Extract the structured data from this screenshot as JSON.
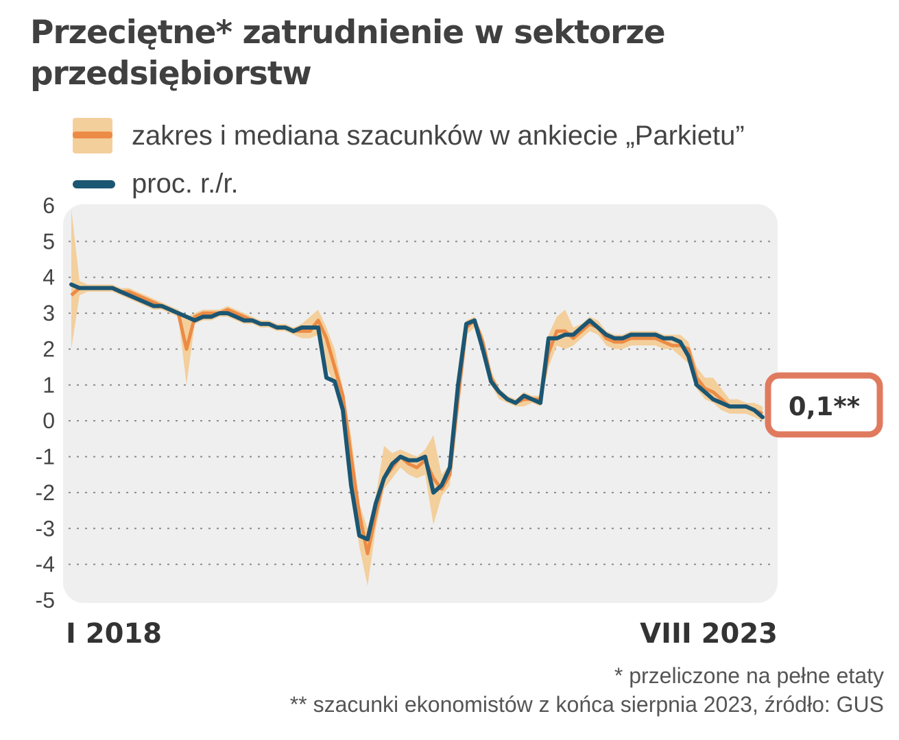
{
  "chart_data": {
    "type": "line",
    "title": "Przeciętne* zatrudnienie w sektorze przedsiębiorstw",
    "ylim": [
      -5,
      6
    ],
    "yticks": [
      "6",
      "5",
      "4",
      "3",
      "2",
      "1",
      "0",
      "-1",
      "-2",
      "-3",
      "-4",
      "-5"
    ],
    "x_start_label": "I 2018",
    "x_end_label": "VIII 2023",
    "legend": {
      "range": "zakres i mediana szacunków w ankiecie „Parkietu”",
      "line": "proc. r./r."
    },
    "callout": "0,1**",
    "series": [
      {
        "name": "proc. r./r.",
        "color": "#1b5673",
        "values": [
          3.8,
          3.7,
          3.7,
          3.7,
          3.7,
          3.7,
          3.6,
          3.5,
          3.4,
          3.3,
          3.2,
          3.2,
          3.1,
          3.0,
          2.9,
          2.8,
          2.9,
          2.9,
          3.0,
          3.0,
          2.9,
          2.8,
          2.8,
          2.7,
          2.7,
          2.6,
          2.6,
          2.5,
          2.6,
          2.6,
          2.6,
          1.2,
          1.1,
          0.3,
          -1.8,
          -3.2,
          -3.3,
          -2.3,
          -1.6,
          -1.2,
          -1.0,
          -1.1,
          -1.1,
          -1.0,
          -2.0,
          -1.8,
          -1.3,
          1.0,
          2.7,
          2.8,
          2.0,
          1.1,
          0.8,
          0.6,
          0.5,
          0.7,
          0.6,
          0.5,
          2.3,
          2.3,
          2.4,
          2.4,
          2.6,
          2.8,
          2.6,
          2.4,
          2.3,
          2.3,
          2.4,
          2.4,
          2.4,
          2.4,
          2.3,
          2.3,
          2.2,
          1.8,
          1.0,
          0.8,
          0.6,
          0.5,
          0.4,
          0.4,
          0.4,
          0.3,
          0.1
        ]
      },
      {
        "name": "mediana szacunków",
        "color": "#ec8b45",
        "values": [
          3.5,
          3.7,
          3.7,
          3.7,
          3.7,
          3.7,
          3.6,
          3.6,
          3.5,
          3.4,
          3.3,
          3.2,
          3.1,
          3.0,
          2.0,
          2.9,
          3.0,
          3.0,
          3.0,
          3.1,
          3.0,
          2.9,
          2.8,
          2.7,
          2.7,
          2.6,
          2.6,
          2.5,
          2.5,
          2.5,
          2.8,
          2.3,
          1.5,
          0.7,
          -1.0,
          -2.6,
          -3.7,
          -2.6,
          -1.6,
          -1.3,
          -1.0,
          -1.2,
          -1.3,
          -1.1,
          -1.6,
          -1.9,
          -1.5,
          0.6,
          2.6,
          2.8,
          2.2,
          1.2,
          0.8,
          0.6,
          0.5,
          0.6,
          0.6,
          0.6,
          1.9,
          2.5,
          2.5,
          2.3,
          2.5,
          2.7,
          2.6,
          2.3,
          2.2,
          2.2,
          2.3,
          2.3,
          2.3,
          2.3,
          2.2,
          2.1,
          2.1,
          2.0,
          1.2,
          0.9,
          0.8,
          0.6,
          0.4,
          0.4,
          0.4,
          0.3,
          0.2
        ]
      }
    ],
    "range_band": {
      "name": "zakres szacunków",
      "color": "#f3cf9c",
      "lower": [
        2.0,
        3.5,
        3.6,
        3.6,
        3.6,
        3.6,
        3.5,
        3.4,
        3.3,
        3.2,
        3.1,
        3.1,
        3.0,
        2.9,
        1.0,
        2.7,
        2.8,
        2.8,
        2.9,
        2.9,
        2.8,
        2.7,
        2.7,
        2.6,
        2.6,
        2.5,
        2.5,
        2.4,
        2.3,
        2.3,
        2.4,
        1.5,
        1.0,
        0.2,
        -2.0,
        -3.5,
        -4.6,
        -3.0,
        -1.9,
        -1.6,
        -1.3,
        -1.5,
        -1.6,
        -1.5,
        -2.9,
        -2.1,
        -1.8,
        0.3,
        2.4,
        2.6,
        1.9,
        1.0,
        0.6,
        0.5,
        0.4,
        0.4,
        0.5,
        0.4,
        1.5,
        2.1,
        2.0,
        2.1,
        2.3,
        2.5,
        2.4,
        2.1,
        2.0,
        2.0,
        2.1,
        2.1,
        2.1,
        2.1,
        2.0,
        2.0,
        1.8,
        1.6,
        0.9,
        0.6,
        0.5,
        0.3,
        0.2,
        0.2,
        0.2,
        0.1,
        0.0
      ],
      "upper": [
        5.9,
        3.9,
        3.8,
        3.8,
        3.8,
        3.8,
        3.7,
        3.7,
        3.6,
        3.5,
        3.4,
        3.3,
        3.2,
        3.1,
        2.9,
        3.0,
        3.1,
        3.1,
        3.1,
        3.2,
        3.1,
        3.0,
        2.9,
        2.8,
        2.8,
        2.7,
        2.7,
        2.6,
        2.7,
        2.9,
        3.1,
        2.6,
        2.0,
        0.9,
        -0.4,
        -2.3,
        -3.0,
        -2.1,
        -0.7,
        -0.9,
        -0.8,
        -0.9,
        -1.0,
        -0.8,
        -0.4,
        -1.5,
        -1.2,
        1.0,
        2.8,
        2.9,
        2.4,
        1.4,
        0.9,
        0.7,
        0.6,
        0.8,
        0.7,
        0.7,
        2.4,
        2.9,
        3.1,
        2.6,
        2.7,
        2.9,
        2.8,
        2.5,
        2.4,
        2.4,
        2.5,
        2.5,
        2.5,
        2.5,
        2.4,
        2.4,
        2.4,
        2.2,
        1.5,
        1.2,
        1.2,
        0.9,
        0.6,
        0.6,
        0.5,
        0.5,
        0.4
      ]
    }
  },
  "footnotes": {
    "f1": "* przeliczone na pełne etaty",
    "f2": "** szacunki ekonomistów z końca sierpnia 2023, źródło: GUS"
  }
}
